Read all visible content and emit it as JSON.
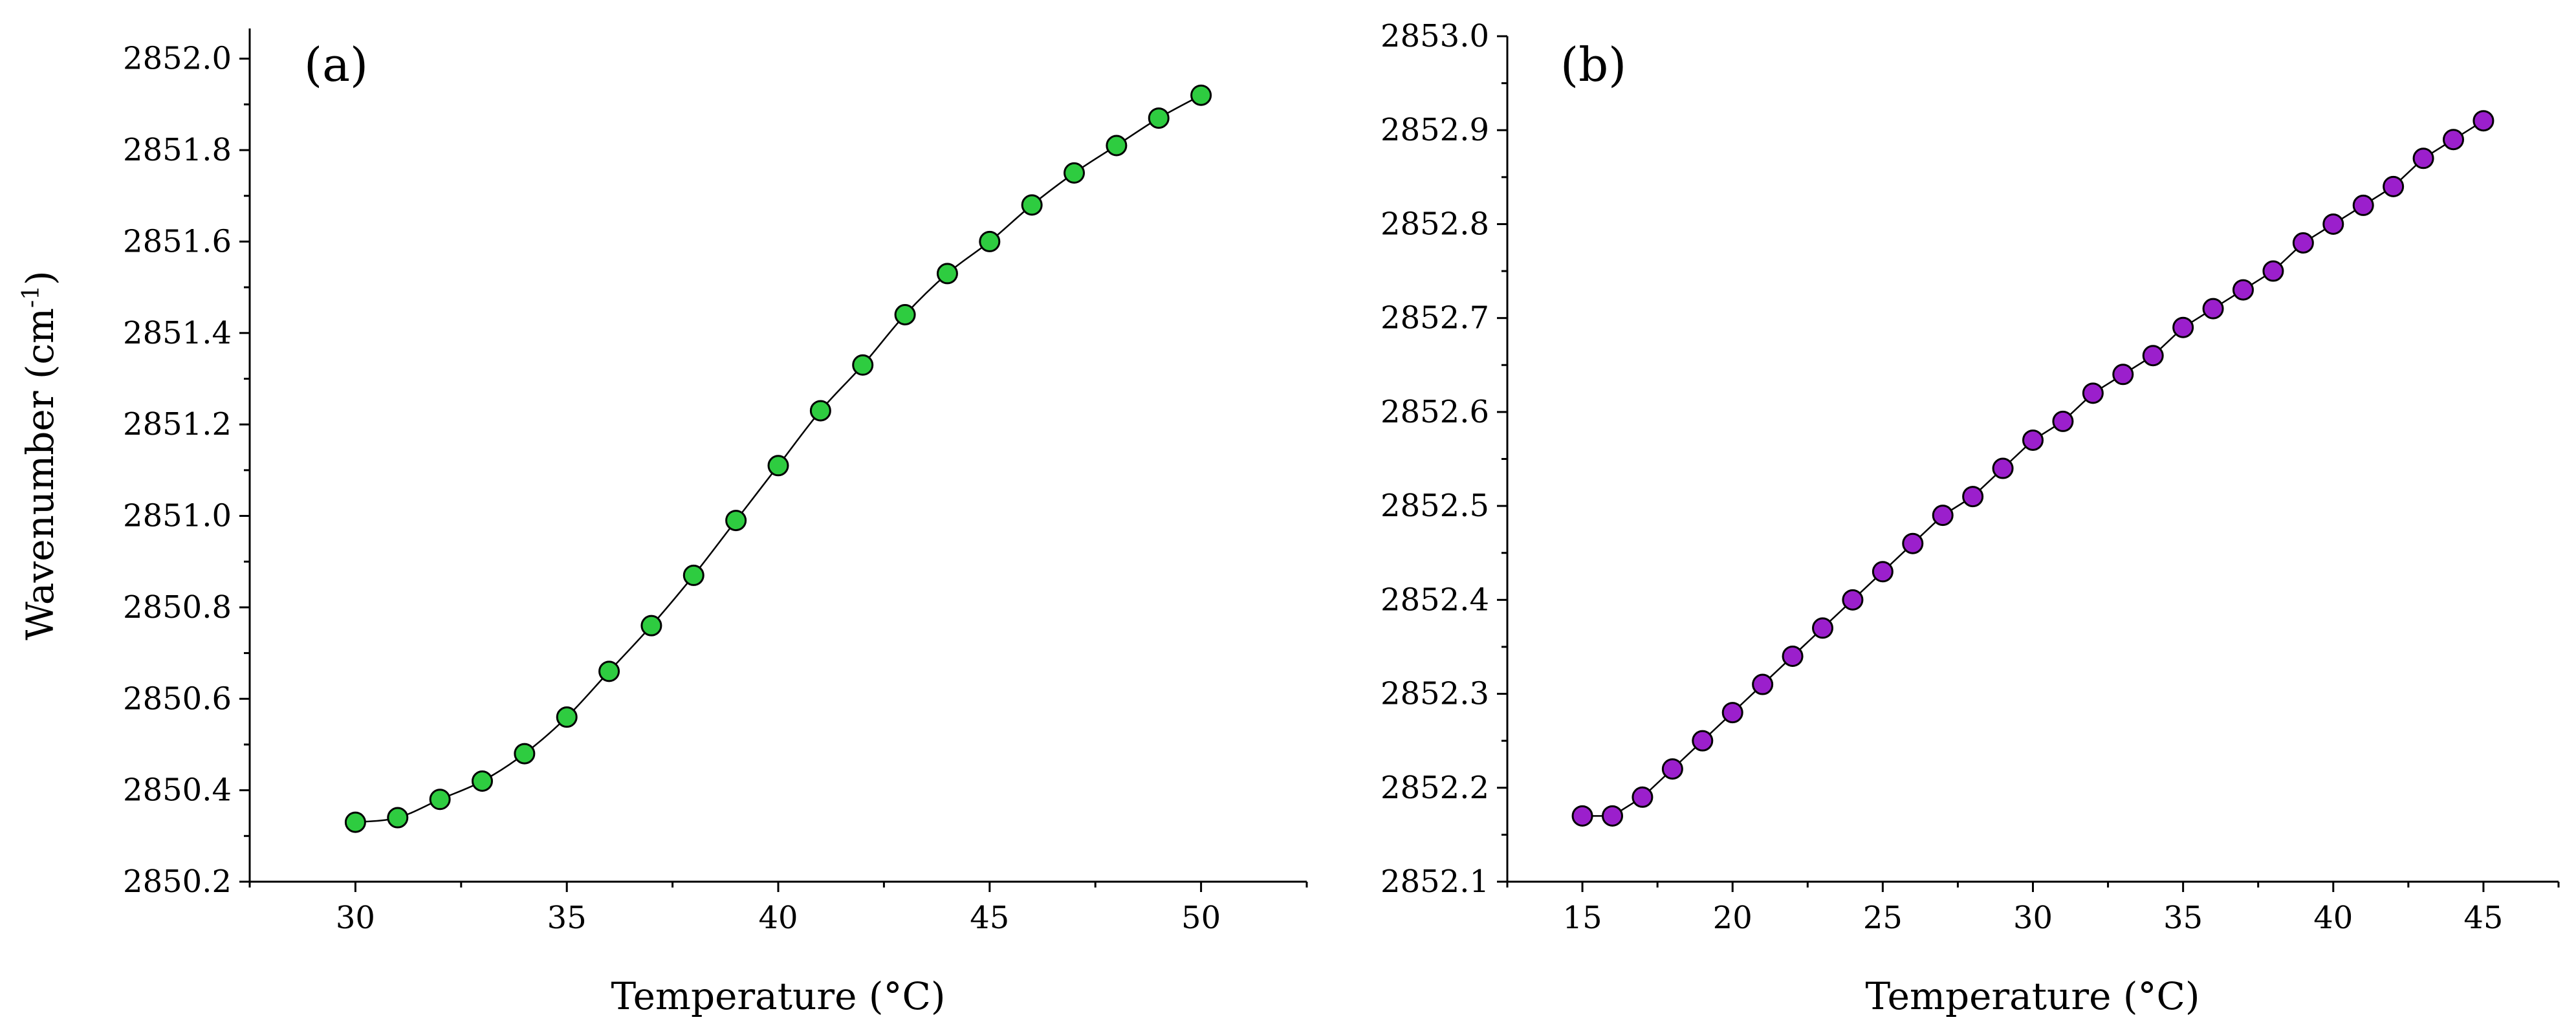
{
  "chart_data": [
    {
      "type": "scatter",
      "panel_label": "(a)",
      "xlabel": "Temperature (°C)",
      "ylabel": "Wavenumber (cm",
      "ylabel_superscript": "-1",
      "ylabel_suffix": ")",
      "xlim": [
        27.5,
        52.5
      ],
      "ylim": [
        2850.2,
        2852.1
      ],
      "xticks": [
        30,
        35,
        40,
        45,
        50
      ],
      "xtick_labels": [
        "30",
        "35",
        "40",
        "45",
        "50"
      ],
      "yticks": [
        2850.2,
        2850.4,
        2850.6,
        2850.8,
        2851.0,
        2851.2,
        2851.4,
        2851.6,
        2851.8,
        2852.0
      ],
      "ytick_labels": [
        "2850.2",
        "2850.4",
        "2850.6",
        "2850.8",
        "2851.0",
        "2851.2",
        "2851.4",
        "2851.6",
        "2851.8",
        "2852.0"
      ],
      "marker_color": "#2ecc40",
      "line_smooth": true,
      "series": [
        {
          "name": "(a)",
          "x": [
            30,
            31,
            32,
            33,
            34,
            35,
            36,
            37,
            38,
            39,
            40,
            41,
            42,
            43,
            44,
            45,
            46,
            47,
            48,
            49,
            50
          ],
          "y": [
            2850.33,
            2850.34,
            2850.38,
            2850.42,
            2850.48,
            2850.56,
            2850.66,
            2850.76,
            2850.87,
            2850.99,
            2851.11,
            2851.23,
            2851.33,
            2851.44,
            2851.53,
            2851.6,
            2851.68,
            2851.75,
            2851.81,
            2851.87,
            2851.92
          ]
        }
      ]
    },
    {
      "type": "scatter",
      "panel_label": "(b)",
      "xlabel": "Temperature (°C)",
      "ylabel": "",
      "xlim": [
        12.5,
        47.5
      ],
      "ylim": [
        2852.1,
        2853.0
      ],
      "xticks": [
        15,
        20,
        25,
        30,
        35,
        40,
        45
      ],
      "xtick_labels": [
        "15",
        "20",
        "25",
        "30",
        "35",
        "40",
        "45"
      ],
      "yticks": [
        2852.1,
        2852.2,
        2852.3,
        2852.4,
        2852.5,
        2852.6,
        2852.7,
        2852.8,
        2852.9,
        2853.0
      ],
      "ytick_labels": [
        "2852.1",
        "2852.2",
        "2852.3",
        "2852.4",
        "2852.5",
        "2852.6",
        "2852.7",
        "2852.8",
        "2852.9",
        "2853.0"
      ],
      "marker_color": "#9b1fcc",
      "line_smooth": false,
      "series": [
        {
          "name": "(b)",
          "x": [
            15,
            16,
            17,
            18,
            19,
            20,
            21,
            22,
            23,
            24,
            25,
            26,
            27,
            28,
            29,
            30,
            31,
            32,
            33,
            34,
            35,
            36,
            37,
            38,
            39,
            40,
            41,
            42,
            43,
            44,
            45
          ],
          "y": [
            2852.17,
            2852.17,
            2852.19,
            2852.22,
            2852.25,
            2852.28,
            2852.31,
            2852.34,
            2852.37,
            2852.4,
            2852.43,
            2852.46,
            2852.49,
            2852.51,
            2852.54,
            2852.57,
            2852.59,
            2852.62,
            2852.64,
            2852.66,
            2852.69,
            2852.71,
            2852.73,
            2852.75,
            2852.78,
            2852.8,
            2852.82,
            2852.84,
            2852.87,
            2852.89,
            2852.91
          ]
        }
      ]
    }
  ]
}
